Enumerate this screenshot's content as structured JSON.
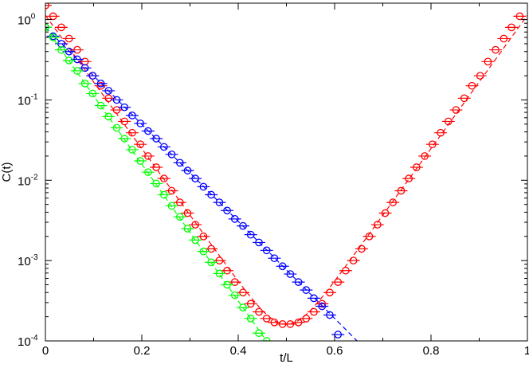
{
  "chart_data": {
    "type": "scatter",
    "title": "",
    "xlabel": "t/L",
    "ylabel": "C(t)",
    "xlim": [
      0,
      1
    ],
    "ylim": [
      0.0001,
      1.6
    ],
    "yscale": "log",
    "grid": false,
    "legend": "none",
    "x_ticks": [
      {
        "value": 0,
        "label": "0"
      },
      {
        "value": 0.2,
        "label": "0.2"
      },
      {
        "value": 0.4,
        "label": "0.4"
      },
      {
        "value": 0.6,
        "label": "0.6"
      },
      {
        "value": 0.8,
        "label": "0.8"
      },
      {
        "value": 1,
        "label": "1"
      }
    ],
    "y_ticks": [
      {
        "value": 1,
        "base": "10",
        "exp": "0"
      },
      {
        "value": 0.1,
        "base": "10",
        "exp": "-1"
      },
      {
        "value": 0.01,
        "base": "10",
        "exp": "-2"
      },
      {
        "value": 0.001,
        "base": "10",
        "exp": "-3"
      },
      {
        "value": 0.0001,
        "base": "10",
        "exp": "-4"
      }
    ],
    "series": [
      {
        "color": "#ff0000",
        "style": "circles with error bars, dashed fit line",
        "fit": {
          "type": "cosh",
          "A": 8.05e-05,
          "m": 19.1,
          "center": 0.5
        },
        "x": [
          0,
          0.016,
          0.033,
          0.049,
          0.066,
          0.082,
          0.098,
          0.115,
          0.131,
          0.148,
          0.164,
          0.18,
          0.197,
          0.213,
          0.23,
          0.246,
          0.262,
          0.279,
          0.295,
          0.311,
          0.328,
          0.344,
          0.361,
          0.377,
          0.393,
          0.41,
          0.426,
          0.443,
          0.459,
          0.475,
          0.492,
          0.508,
          0.525,
          0.541,
          0.557,
          0.574,
          0.59,
          0.607,
          0.623,
          0.639,
          0.656,
          0.672,
          0.689,
          0.705,
          0.721,
          0.738,
          0.754,
          0.77,
          0.787,
          0.803,
          0.82,
          0.836,
          0.852,
          0.869,
          0.885,
          0.902,
          0.918,
          0.934,
          0.951,
          0.967,
          0.984
        ],
        "y": [
          1.5,
          1.1,
          0.8,
          0.58,
          0.42,
          0.3,
          0.2,
          0.15,
          0.105,
          0.075,
          0.054,
          0.039,
          0.028,
          0.02,
          0.0145,
          0.0105,
          0.0074,
          0.0053,
          0.0039,
          0.0028,
          0.002,
          0.0014,
          0.001,
          0.00075,
          0.00054,
          0.0004,
          0.00029,
          0.00023,
          0.00019,
          0.00017,
          0.000162,
          0.000162,
          0.00017,
          0.00019,
          0.00023,
          0.00029,
          0.0004,
          0.00054,
          0.00075,
          0.001,
          0.0014,
          0.002,
          0.0028,
          0.0039,
          0.0053,
          0.0074,
          0.0105,
          0.0145,
          0.02,
          0.028,
          0.039,
          0.054,
          0.075,
          0.105,
          0.15,
          0.2,
          0.3,
          0.42,
          0.58,
          0.8,
          1.1
        ]
      },
      {
        "color": "#0000ff",
        "style": "circles with error bars, dashed fit line",
        "fit": {
          "type": "exp",
          "A": 0.8,
          "m": 13.9
        },
        "x": [
          0,
          0.016,
          0.033,
          0.049,
          0.066,
          0.082,
          0.098,
          0.115,
          0.131,
          0.148,
          0.164,
          0.18,
          0.197,
          0.213,
          0.23,
          0.246,
          0.262,
          0.279,
          0.295,
          0.311,
          0.328,
          0.344,
          0.361,
          0.377,
          0.393,
          0.41,
          0.426,
          0.443,
          0.459,
          0.475,
          0.492,
          0.508,
          0.525,
          0.541,
          0.557,
          0.574,
          0.59,
          0.607
        ],
        "y": [
          0.8,
          0.62,
          0.5,
          0.4,
          0.32,
          0.25,
          0.2,
          0.16,
          0.13,
          0.1,
          0.081,
          0.064,
          0.051,
          0.041,
          0.033,
          0.026,
          0.021,
          0.0165,
          0.0132,
          0.0105,
          0.0083,
          0.0066,
          0.0053,
          0.0042,
          0.0033,
          0.0027,
          0.0021,
          0.00168,
          0.00134,
          0.00107,
          0.00085,
          0.00068,
          0.00054,
          0.00043,
          0.00034,
          0.00027,
          0.00021,
          0.00012
        ]
      },
      {
        "color": "#00ff00",
        "style": "circles with error bars, dashed fit line",
        "fit": {
          "type": "exp",
          "A": 0.8,
          "m": 19.6
        },
        "x": [
          0,
          0.016,
          0.033,
          0.049,
          0.066,
          0.082,
          0.098,
          0.115,
          0.131,
          0.148,
          0.164,
          0.18,
          0.197,
          0.213,
          0.23,
          0.246,
          0.262,
          0.279,
          0.295,
          0.311,
          0.328,
          0.344,
          0.361,
          0.377,
          0.393,
          0.41,
          0.426,
          0.443,
          0.459
        ],
        "y": [
          0.8,
          0.6,
          0.42,
          0.31,
          0.23,
          0.16,
          0.12,
          0.085,
          0.062,
          0.045,
          0.033,
          0.024,
          0.0174,
          0.0126,
          0.0091,
          0.0066,
          0.0048,
          0.0035,
          0.0025,
          0.0018,
          0.0013,
          0.00095,
          0.00069,
          0.0005,
          0.00037,
          0.00026,
          0.00019,
          0.000125,
          0.0001
        ]
      }
    ]
  }
}
